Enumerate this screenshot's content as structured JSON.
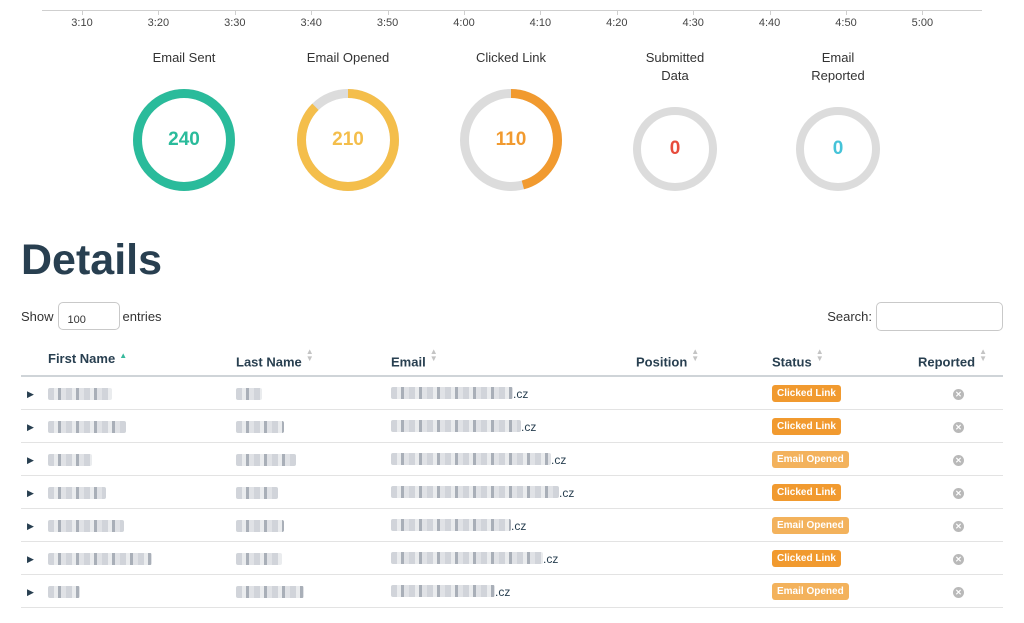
{
  "timeline": {
    "ticks": [
      "3:10",
      "3:20",
      "3:30",
      "3:40",
      "3:50",
      "4:00",
      "4:10",
      "4:20",
      "4:30",
      "4:40",
      "4:50",
      "5:00"
    ]
  },
  "stats": [
    {
      "label": "Email Sent",
      "value": "240",
      "fraction": 1.0,
      "color": "#2abb9b"
    },
    {
      "label": "Email Opened",
      "value": "210",
      "fraction": 0.875,
      "color": "#f4be4b"
    },
    {
      "label": "Clicked Link",
      "value": "110",
      "fraction": 0.458,
      "color": "#f19a2f"
    },
    {
      "label": "Submitted Data",
      "value": "0",
      "fraction": 0,
      "color": "#e74c3c"
    },
    {
      "label": "Email Reported",
      "value": "0",
      "fraction": 0,
      "color": "#45c3d8"
    }
  ],
  "details": {
    "title": "Details",
    "show_label": "Show",
    "entries_value": "100",
    "entries_label": "entries",
    "search_label": "Search:"
  },
  "table": {
    "columns": [
      "First Name",
      "Last Name",
      "Email",
      "Position",
      "Status",
      "Reported"
    ],
    "rows": [
      {
        "email_suffix": ".cz",
        "status": "Clicked Link"
      },
      {
        "email_suffix": ".cz",
        "status": "Clicked Link"
      },
      {
        "email_suffix": ".cz",
        "status": "Email Opened"
      },
      {
        "email_suffix": ".cz",
        "status": "Clicked Link"
      },
      {
        "email_suffix": ".cz",
        "status": "Email Opened"
      },
      {
        "email_suffix": ".cz",
        "status": "Clicked Link"
      },
      {
        "email_suffix": ".cz",
        "status": "Email Opened"
      }
    ]
  },
  "status_colors": {
    "Clicked Link": "#f19a2f",
    "Email Opened": "#f3b25c"
  },
  "icons": {
    "reported": "close-circle-icon",
    "expander": "triangle-right-icon"
  }
}
